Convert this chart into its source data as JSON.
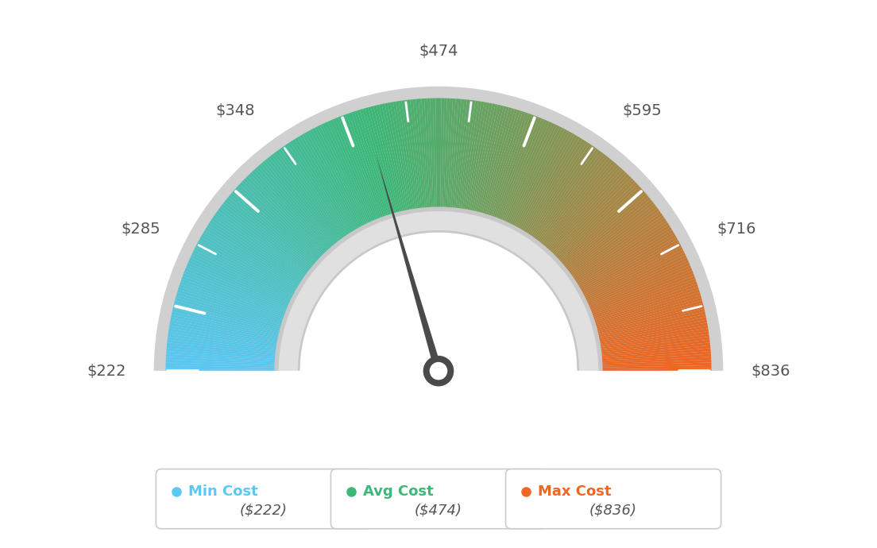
{
  "min_val": 222,
  "max_val": 836,
  "avg_val": 474,
  "label_values": [
    222,
    285,
    348,
    474,
    595,
    716,
    836
  ],
  "label_texts": [
    "$222",
    "$285",
    "$348",
    "$474",
    "$595",
    "$716",
    "$836"
  ],
  "min_cost_label": "Min Cost",
  "avg_cost_label": "Avg Cost",
  "max_cost_label": "Max Cost",
  "min_cost_val": "($222)",
  "avg_cost_val": "($474)",
  "max_cost_val": "($836)",
  "color_min": "#5bc8f5",
  "color_mid": "#3cb878",
  "color_max": "#f26522",
  "text_color": "#555555",
  "background_color": "#ffffff",
  "needle_color": "#4a4a4a",
  "bezel_color": "#d0d0d0",
  "inner_bezel_color": "#e0e0e0"
}
